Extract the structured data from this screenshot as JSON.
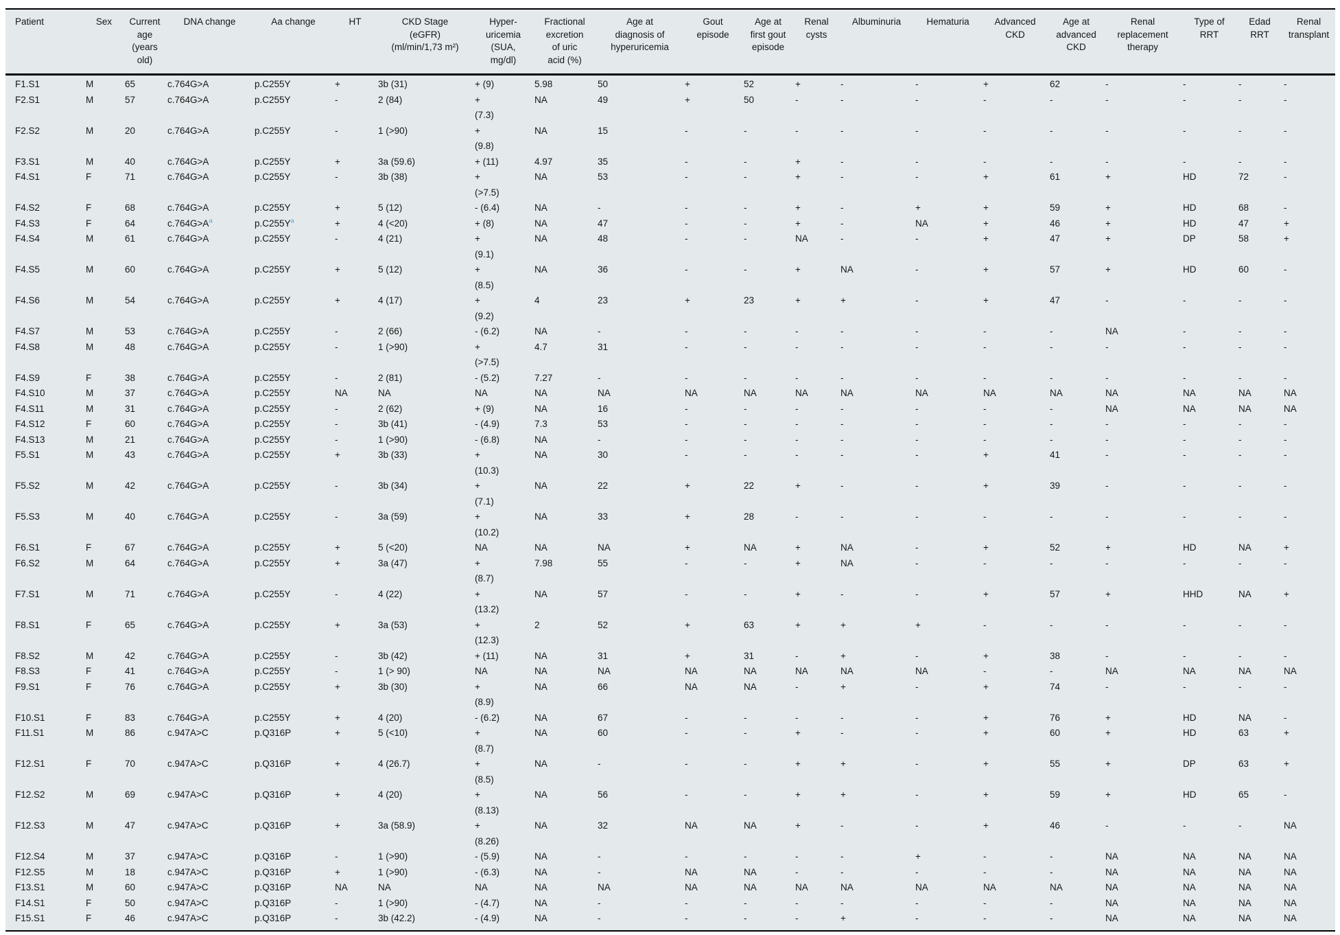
{
  "table": {
    "background_color": "#e4eaec",
    "text_color": "#161616",
    "annotation_color": "#4aa5d8",
    "columns": [
      {
        "key": "patient",
        "label": "Patient"
      },
      {
        "key": "sex",
        "label": "Sex"
      },
      {
        "key": "current_age",
        "label": "Current\nage\n(years\nold)"
      },
      {
        "key": "dna_change",
        "label": "DNA change"
      },
      {
        "key": "aa_change",
        "label": "Aa change"
      },
      {
        "key": "ht",
        "label": "HT"
      },
      {
        "key": "ckd_stage",
        "label": "CKD Stage\n(eGFR)\n(ml/min/1,73 m²)"
      },
      {
        "key": "hyperuricemia",
        "label": "Hyper-\nuricemia\n(SUA,\nmg/dl)"
      },
      {
        "key": "fractional_excretion",
        "label": "Fractional\nexcretion\nof uric\nacid (%)"
      },
      {
        "key": "age_dx_hyperuricemia",
        "label": "Age at\ndiagnosis of\nhyperuricemia"
      },
      {
        "key": "gout_episode",
        "label": "Gout\nepisode"
      },
      {
        "key": "age_first_gout",
        "label": "Age at\nfirst gout\nepisode"
      },
      {
        "key": "renal_cysts",
        "label": "Renal\ncysts"
      },
      {
        "key": "albuminuria",
        "label": "Albuminuria"
      },
      {
        "key": "hematuria",
        "label": "Hematuria"
      },
      {
        "key": "advanced_ckd",
        "label": "Advanced\nCKD"
      },
      {
        "key": "age_advanced_ckd",
        "label": "Age at\nadvanced\nCKD"
      },
      {
        "key": "renal_replacement",
        "label": "Renal\nreplacement\ntherapy"
      },
      {
        "key": "type_rrt",
        "label": "Type of\nRRT"
      },
      {
        "key": "edad_rrt",
        "label": "Edad\nRRT"
      },
      {
        "key": "renal_transplant",
        "label": "Renal\ntransplant"
      }
    ],
    "rows": [
      [
        "F1.S1",
        "M",
        "65",
        "c.764G>A",
        "p.C255Y",
        "+",
        "3b (31)",
        "+ (9)",
        "5.98",
        "50",
        "+",
        "52",
        "+",
        "-",
        "-",
        "+",
        "62",
        "-",
        "-",
        "-",
        "-"
      ],
      [
        "F2.S1",
        "M",
        "57",
        "c.764G>A",
        "p.C255Y",
        "-",
        "2 (84)",
        "+\n(7.3)",
        "NA",
        "49",
        "+",
        "50",
        "-",
        "-",
        "-",
        "-",
        "-",
        "-",
        "-",
        "-",
        "-"
      ],
      [
        "F2.S2",
        "M",
        "20",
        "c.764G>A",
        "p.C255Y",
        "-",
        "1 (>90)",
        "+\n(9.8)",
        "NA",
        "15",
        "-",
        "-",
        "-",
        "-",
        "-",
        "-",
        "-",
        "-",
        "-",
        "-",
        "-"
      ],
      [
        "F3.S1",
        "M",
        "40",
        "c.764G>A",
        "p.C255Y",
        "+",
        "3a (59.6)",
        "+ (11)",
        "4.97",
        "35",
        "-",
        "-",
        "+",
        "-",
        "-",
        "-",
        "-",
        "-",
        "-",
        "-",
        "-"
      ],
      [
        "F4.S1",
        "F",
        "71",
        "c.764G>A",
        "p.C255Y",
        "-",
        "3b (38)",
        "+\n(>7.5)",
        "NA",
        "53",
        "-",
        "-",
        "+",
        "-",
        "-",
        "+",
        "61",
        "+",
        "HD",
        "72",
        "-"
      ],
      [
        "F4.S2",
        "F",
        "68",
        "c.764G>A",
        "p.C255Y",
        "+",
        "5 (12)",
        "- (6.4)",
        "NA",
        "-",
        "-",
        "-",
        "+",
        "-",
        "+",
        "+",
        "59",
        "+",
        "HD",
        "68",
        "-"
      ],
      [
        "F4.S3",
        "F",
        "64",
        {
          "t": "c.764G>A",
          "sup": "a"
        },
        {
          "t": "p.C255Y",
          "sup": "a"
        },
        "+",
        "4 (<20)",
        "+ (8)",
        "NA",
        "47",
        "-",
        "-",
        "+",
        "-",
        "NA",
        "+",
        "46",
        "+",
        "HD",
        "47",
        "+"
      ],
      [
        "F4.S4",
        "M",
        "61",
        "c.764G>A",
        "p.C255Y",
        "-",
        "4 (21)",
        "+\n(9.1)",
        "NA",
        "48",
        "-",
        "-",
        "NA",
        "-",
        "-",
        "+",
        "47",
        "+",
        "DP",
        "58",
        "+"
      ],
      [
        "F4.S5",
        "M",
        "60",
        "c.764G>A",
        "p.C255Y",
        "+",
        "5 (12)",
        "+\n(8.5)",
        "NA",
        "36",
        "-",
        "-",
        "+",
        "NA",
        "-",
        "+",
        "57",
        "+",
        "HD",
        "60",
        "-"
      ],
      [
        "F4.S6",
        "M",
        "54",
        "c.764G>A",
        "p.C255Y",
        "+",
        "4 (17)",
        "+\n(9.2)",
        "4",
        "23",
        "+",
        "23",
        "+",
        "+",
        "-",
        "+",
        "47",
        "-",
        "-",
        "-",
        "-"
      ],
      [
        "F4.S7",
        "M",
        "53",
        "c.764G>A",
        "p.C255Y",
        "-",
        "2 (66)",
        "- (6.2)",
        "NA",
        "-",
        "-",
        "-",
        "-",
        "-",
        "-",
        "-",
        "-",
        "NA",
        "-",
        "-",
        "-"
      ],
      [
        "F4.S8",
        "M",
        "48",
        "c.764G>A",
        "p.C255Y",
        "-",
        "1 (>90)",
        "+\n(>7.5)",
        "4.7",
        "31",
        "-",
        "-",
        "-",
        "-",
        "-",
        "-",
        "-",
        "-",
        "-",
        "-",
        "-"
      ],
      [
        "F4.S9",
        "F",
        "38",
        "c.764G>A",
        "p.C255Y",
        "-",
        "2 (81)",
        "- (5.2)",
        "7.27",
        "-",
        "-",
        "-",
        "-",
        "-",
        "-",
        "-",
        "-",
        "-",
        "-",
        "-",
        "-"
      ],
      [
        "F4.S10",
        "M",
        "37",
        "c.764G>A",
        "p.C255Y",
        "NA",
        "NA",
        "NA",
        "NA",
        "NA",
        "NA",
        "NA",
        "NA",
        "NA",
        "NA",
        "NA",
        "NA",
        "NA",
        "NA",
        "NA",
        "NA"
      ],
      [
        "F4.S11",
        "M",
        "31",
        "c.764G>A",
        "p.C255Y",
        "-",
        "2 (62)",
        "+ (9)",
        "NA",
        "16",
        "-",
        "-",
        "-",
        "-",
        "-",
        "-",
        "-",
        "NA",
        "NA",
        "NA",
        "NA"
      ],
      [
        "F4.S12",
        "F",
        "60",
        "c.764G>A",
        "p.C255Y",
        "-",
        "3b (41)",
        "- (4.9)",
        "7.3",
        "53",
        "-",
        "-",
        "-",
        "-",
        "-",
        "-",
        "-",
        "-",
        "-",
        "-",
        "-"
      ],
      [
        "F4.S13",
        "M",
        "21",
        "c.764G>A",
        "p.C255Y",
        "-",
        "1 (>90)",
        "- (6.8)",
        "NA",
        "-",
        "-",
        "-",
        "-",
        "-",
        "-",
        "-",
        "-",
        "-",
        "-",
        "-",
        "-"
      ],
      [
        "F5.S1",
        "M",
        "43",
        "c.764G>A",
        "p.C255Y",
        "+",
        "3b (33)",
        "+\n(10.3)",
        "NA",
        "30",
        "-",
        "-",
        "-",
        "-",
        "-",
        "+",
        "41",
        "-",
        "-",
        "-",
        "-"
      ],
      [
        "F5.S2",
        "M",
        "42",
        "c.764G>A",
        "p.C255Y",
        "-",
        "3b (34)",
        "+\n(7.1)",
        "NA",
        "22",
        "+",
        "22",
        "+",
        "-",
        "-",
        "+",
        "39",
        "-",
        "-",
        "-",
        "-"
      ],
      [
        "F5.S3",
        "M",
        "40",
        "c.764G>A",
        "p.C255Y",
        "-",
        "3a (59)",
        "+\n(10.2)",
        "NA",
        "33",
        "+",
        "28",
        "-",
        "-",
        "-",
        "-",
        "-",
        "-",
        "-",
        "-",
        "-"
      ],
      [
        "F6.S1",
        "F",
        "67",
        "c.764G>A",
        "p.C255Y",
        "+",
        "5 (<20)",
        "NA",
        "NA",
        "NA",
        "+",
        "NA",
        "+",
        "NA",
        "-",
        "+",
        "52",
        "+",
        "HD",
        "NA",
        "+"
      ],
      [
        "F6.S2",
        "M",
        "64",
        "c.764G>A",
        "p.C255Y",
        "+",
        "3a (47)",
        "+\n(8.7)",
        "7.98",
        "55",
        "-",
        "-",
        "+",
        "NA",
        "-",
        "-",
        "-",
        "-",
        "-",
        "-",
        "-"
      ],
      [
        "F7.S1",
        "M",
        "71",
        "c.764G>A",
        "p.C255Y",
        "-",
        "4 (22)",
        "+\n(13.2)",
        "NA",
        "57",
        "-",
        "-",
        "+",
        "-",
        "-",
        "+",
        "57",
        "+",
        "HHD",
        "NA",
        "+"
      ],
      [
        "F8.S1",
        "F",
        "65",
        "c.764G>A",
        "p.C255Y",
        "+",
        "3a (53)",
        "+\n(12.3)",
        "2",
        "52",
        "+",
        "63",
        "+",
        "+",
        "+",
        "-",
        "-",
        "-",
        "-",
        "-",
        "-"
      ],
      [
        "F8.S2",
        "M",
        "42",
        "c.764G>A",
        "p.C255Y",
        "-",
        "3b (42)",
        "+ (11)",
        "NA",
        "31",
        "+",
        "31",
        "-",
        "+",
        "-",
        "+",
        "38",
        "-",
        "-",
        "-",
        "-"
      ],
      [
        "F8.S3",
        "F",
        "41",
        "c.764G>A",
        "p.C255Y",
        "-",
        "1 (> 90)",
        "NA",
        "NA",
        "NA",
        "NA",
        "NA",
        "NA",
        "NA",
        "NA",
        "-",
        "-",
        "NA",
        "NA",
        "NA",
        "NA"
      ],
      [
        "F9.S1",
        "F",
        "76",
        "c.764G>A",
        "p.C255Y",
        "+",
        "3b (30)",
        "+\n(8.9)",
        "NA",
        "66",
        "NA",
        "NA",
        "-",
        "+",
        "-",
        "+",
        "74",
        "-",
        "-",
        "-",
        "-"
      ],
      [
        "F10.S1",
        "F",
        "83",
        "c.764G>A",
        "p.C255Y",
        "+",
        "4 (20)",
        "- (6.2)",
        "NA",
        "67",
        "-",
        "-",
        "-",
        "-",
        "-",
        "+",
        "76",
        "+",
        "HD",
        "NA",
        "-"
      ],
      [
        "F11.S1",
        "M",
        "86",
        "c.947A>C",
        "p.Q316P",
        "+",
        "5 (<10)",
        "+\n(8.7)",
        "NA",
        "60",
        "-",
        "-",
        "+",
        "-",
        "-",
        "+",
        "60",
        "+",
        "HD",
        "63",
        "+"
      ],
      [
        "F12.S1",
        "F",
        "70",
        "c.947A>C",
        "p.Q316P",
        "+",
        "4 (26.7)",
        "+\n(8.5)",
        "NA",
        "-",
        "-",
        "-",
        "+",
        "+",
        "-",
        "+",
        "55",
        "+",
        "DP",
        "63",
        "+"
      ],
      [
        "F12.S2",
        "M",
        "69",
        "c.947A>C",
        "p.Q316P",
        "+",
        "4 (20)",
        "+\n(8.13)",
        "NA",
        "56",
        "-",
        "-",
        "+",
        "+",
        "-",
        "+",
        "59",
        "+",
        "HD",
        "65",
        "-"
      ],
      [
        "F12.S3",
        "M",
        "47",
        "c.947A>C",
        "p.Q316P",
        "+",
        "3a (58.9)",
        "+\n(8.26)",
        "NA",
        "32",
        "NA",
        "NA",
        "+",
        "-",
        "-",
        "+",
        "46",
        "-",
        "-",
        "-",
        "NA"
      ],
      [
        "F12.S4",
        "M",
        "37",
        "c.947A>C",
        "p.Q316P",
        "-",
        "1 (>90)",
        "- (5.9)",
        "NA",
        "-",
        "-",
        "-",
        "-",
        "-",
        "+",
        "-",
        "-",
        "NA",
        "NA",
        "NA",
        "NA"
      ],
      [
        "F12.S5",
        "M",
        "18",
        "c.947A>C",
        "p.Q316P",
        "+",
        "1 (>90)",
        "- (6.3)",
        "NA",
        "-",
        "NA",
        "NA",
        "-",
        "-",
        "-",
        "-",
        "-",
        "NA",
        "NA",
        "NA",
        "NA"
      ],
      [
        "F13.S1",
        "M",
        "60",
        "c.947A>C",
        "p.Q316P",
        "NA",
        "NA",
        "NA",
        "NA",
        "NA",
        "NA",
        "NA",
        "NA",
        "NA",
        "NA",
        "NA",
        "NA",
        "NA",
        "NA",
        "NA",
        "NA"
      ],
      [
        "F14.S1",
        "F",
        "50",
        "c.947A>C",
        "p.Q316P",
        "-",
        "1 (>90)",
        "- (4.7)",
        "NA",
        "-",
        "-",
        "-",
        "-",
        "-",
        "-",
        "-",
        "-",
        "NA",
        "NA",
        "NA",
        "NA"
      ],
      [
        "F15.S1",
        "F",
        "46",
        "c.947A>C",
        "p.Q316P",
        "-",
        "3b (42.2)",
        "- (4.9)",
        "NA",
        "-",
        "-",
        "-",
        "-",
        "+",
        "-",
        "-",
        "-",
        "NA",
        "NA",
        "NA",
        "NA"
      ]
    ]
  }
}
